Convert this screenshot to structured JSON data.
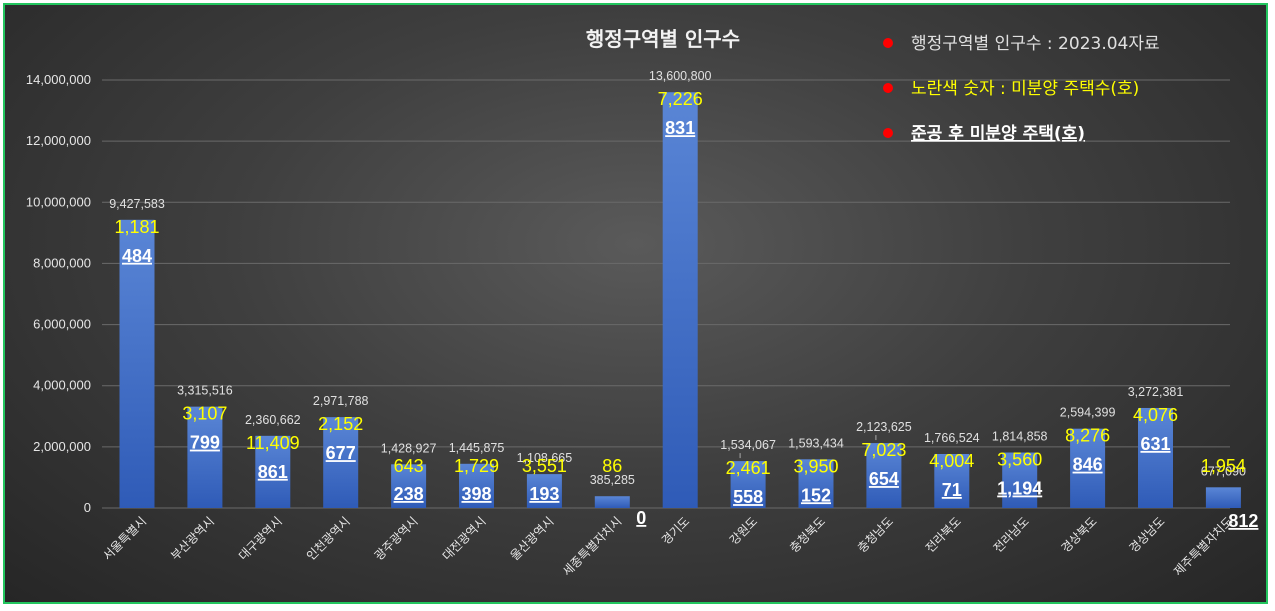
{
  "chart_data": {
    "type": "bar",
    "title": "행정구역별 인구수",
    "categories": [
      "서울특별시",
      "부산광역시",
      "대구광역시",
      "인천광역시",
      "광주광역시",
      "대전광역시",
      "울산광역시",
      "세종특별자치시",
      "경기도",
      "강원도",
      "충청북도",
      "충청남도",
      "전라북도",
      "전라남도",
      "경상북도",
      "경상남도",
      "제주특별자치도"
    ],
    "series": [
      {
        "values": [
          9427583,
          3315516,
          2360662,
          2971788,
          1428927,
          1445875,
          1108665,
          385285,
          13600800,
          1534067,
          1593434,
          2123625,
          1766524,
          1814858,
          2594399,
          3272381,
          677090
        ]
      }
    ],
    "value_labels": [
      "9,427,583",
      "3,315,516",
      "2,360,662",
      "2,971,788",
      "1,428,927",
      "1,445,875",
      "1,108,665",
      "385,285",
      "13,600,800",
      "1,534,067",
      "1,593,434",
      "2,123,625",
      "1,766,524",
      "1,814,858",
      "2,594,399",
      "3,272,381",
      "677,090"
    ],
    "unsold_housing": [
      "1,181",
      "3,107",
      "11,409",
      "2,152",
      "643",
      "1,729",
      "3,551",
      "86",
      "7,226",
      "2,461",
      "3,950",
      "7,023",
      "4,004",
      "3,560",
      "8,276",
      "4,076",
      "1,954"
    ],
    "unsold_after_completion": [
      "484",
      "799",
      "861",
      "677",
      "238",
      "398",
      "193",
      "0",
      "831",
      "558",
      "152",
      "654",
      "71",
      "1,194",
      "846",
      "631",
      "812"
    ],
    "ylim": [
      0,
      14000000
    ],
    "yticks": [
      "0",
      "2,000,000",
      "4,000,000",
      "6,000,000",
      "8,000,000",
      "10,000,000",
      "12,000,000",
      "14,000,000"
    ],
    "grid": true,
    "legend_position": "top-right",
    "legend": [
      {
        "text": "행정구역별 인구수 : 2023.04자료",
        "color": "#e0e0e0",
        "bullet": "#ff0000"
      },
      {
        "text": "노란색 숫자 : 미분양 주택수(호)",
        "color": "#ffff00",
        "bullet": "#ff0000"
      },
      {
        "text": "준공 후 미분양 주택(호)",
        "color": "#ffffff",
        "bullet": "#ff0000"
      }
    ],
    "colors": {
      "bar_top": "#5a86d6",
      "bar_bottom": "#2f5bb7",
      "grid": "#6a6a6a",
      "frame": "#22c55e"
    }
  }
}
